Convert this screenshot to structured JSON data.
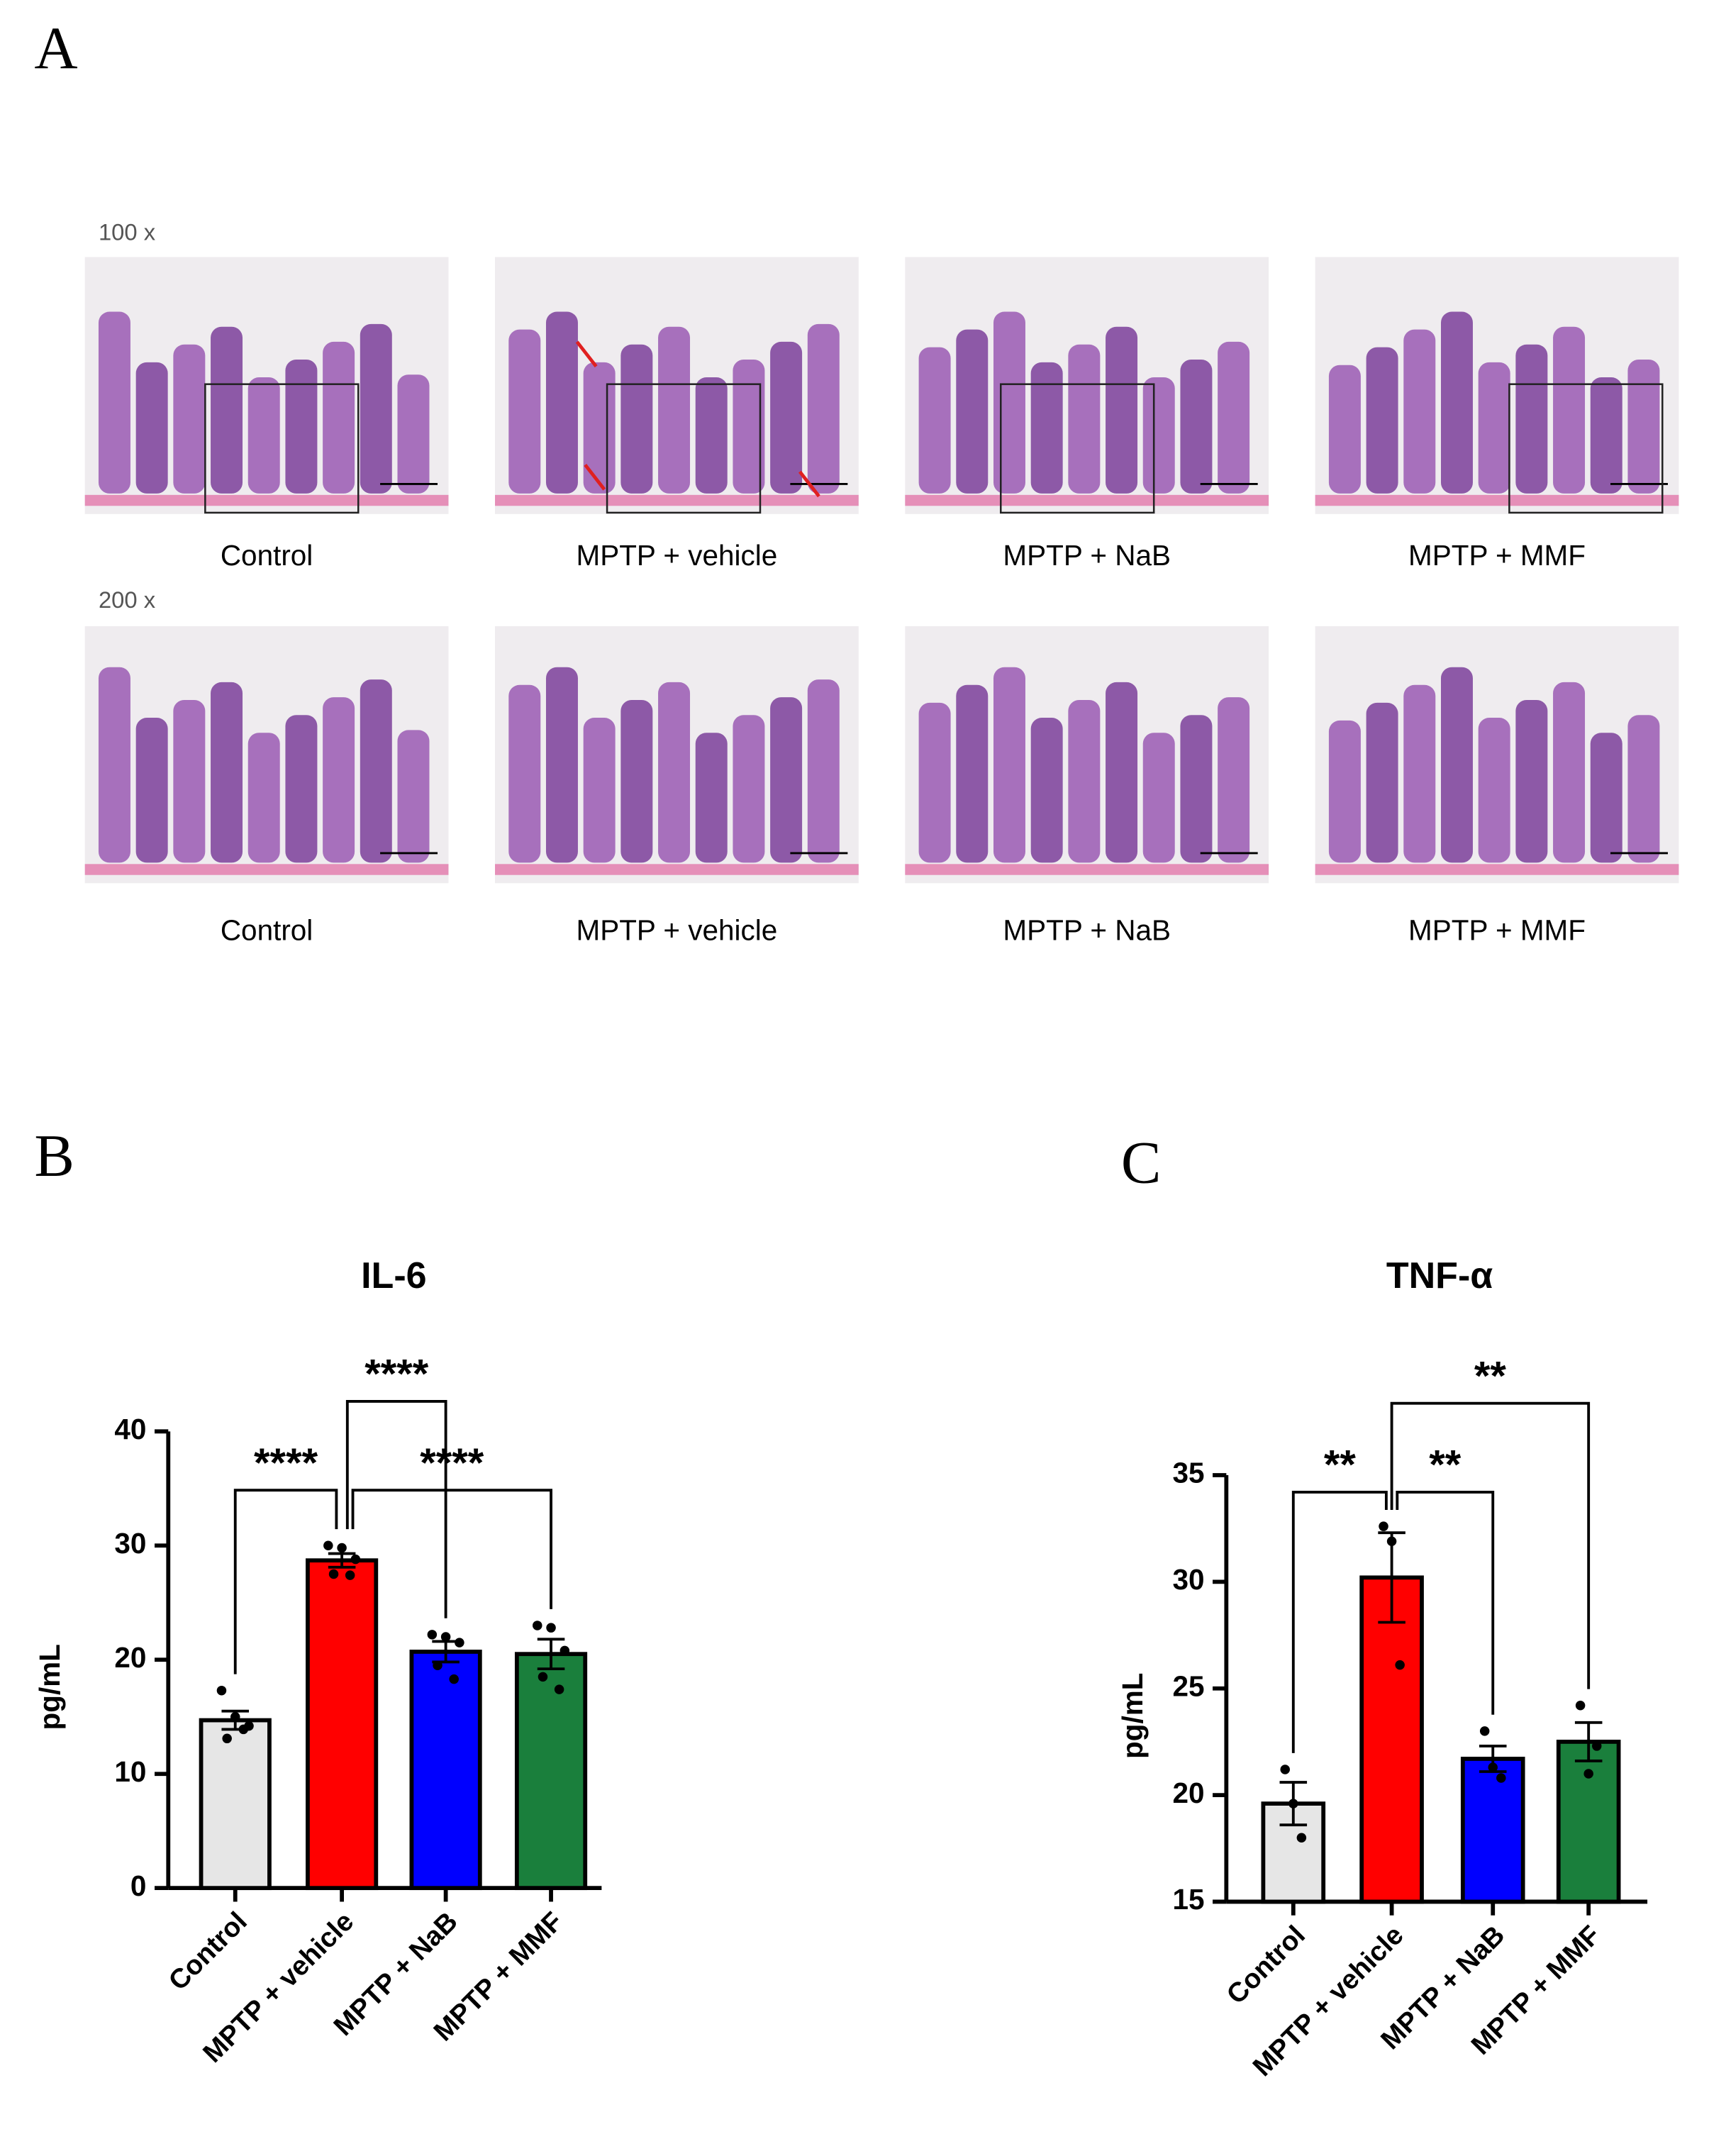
{
  "figure": {
    "panel_labels": [
      "A",
      "B",
      "C"
    ],
    "magnifications": [
      "100 x",
      "200 x"
    ],
    "image_labels": [
      [
        "Control",
        "MPTP + vehicle",
        "MPTP + NaB",
        "MPTP + MMF"
      ],
      [
        "Control",
        "MPTP + vehicle",
        "MPTP + NaB",
        "MPTP + MMF"
      ]
    ]
  },
  "chart_data": [
    {
      "type": "bar",
      "title": "IL-6",
      "y_label": "pg/mL",
      "categories": [
        "Control",
        "MPTP + vehicle",
        "MPTP + NaB",
        "MPTP + MMF"
      ],
      "values": [
        14.7,
        28.7,
        20.7,
        20.5
      ],
      "errors": [
        0.8,
        0.6,
        0.9,
        1.3
      ],
      "points": [
        [
          17.3,
          15.0,
          14.2,
          13.1,
          13.9
        ],
        [
          30.0,
          29.8,
          28.8,
          27.5,
          27.4
        ],
        [
          22.2,
          22.0,
          21.5,
          19.5,
          18.3
        ],
        [
          23.0,
          22.8,
          20.8,
          18.5,
          17.4
        ]
      ],
      "colors": [
        "#e6e6e6",
        "#ff0000",
        "#0000ff",
        "#1a7f3c"
      ],
      "ylim": [
        0,
        40
      ],
      "yticks": [
        0,
        10,
        20,
        30,
        40
      ],
      "comparisons": [
        {
          "from": 0,
          "to": 1,
          "label": "****"
        },
        {
          "from": 1,
          "to": 2,
          "label": "****"
        },
        {
          "from": 1,
          "to": 3,
          "label": "****"
        }
      ]
    },
    {
      "type": "bar",
      "title": "TNF-α",
      "y_label": "pg/mL",
      "categories": [
        "Control",
        "MPTP + vehicle",
        "MPTP + NaB",
        "MPTP + MMF"
      ],
      "values": [
        19.6,
        30.2,
        21.7,
        22.5
      ],
      "errors": [
        1.0,
        2.1,
        0.6,
        0.9
      ],
      "points": [
        [
          21.2,
          19.6,
          18.0
        ],
        [
          32.6,
          31.9,
          26.1
        ],
        [
          23.0,
          21.3,
          20.8
        ],
        [
          24.2,
          21.0,
          22.3
        ]
      ],
      "colors": [
        "#e6e6e6",
        "#ff0000",
        "#0000ff",
        "#1a7f3c"
      ],
      "ylim": [
        15,
        35
      ],
      "yticks": [
        15,
        20,
        25,
        30,
        35
      ],
      "comparisons": [
        {
          "from": 0,
          "to": 1,
          "label": "**"
        },
        {
          "from": 1,
          "to": 2,
          "label": "**"
        },
        {
          "from": 1,
          "to": 3,
          "label": "**"
        }
      ]
    }
  ]
}
